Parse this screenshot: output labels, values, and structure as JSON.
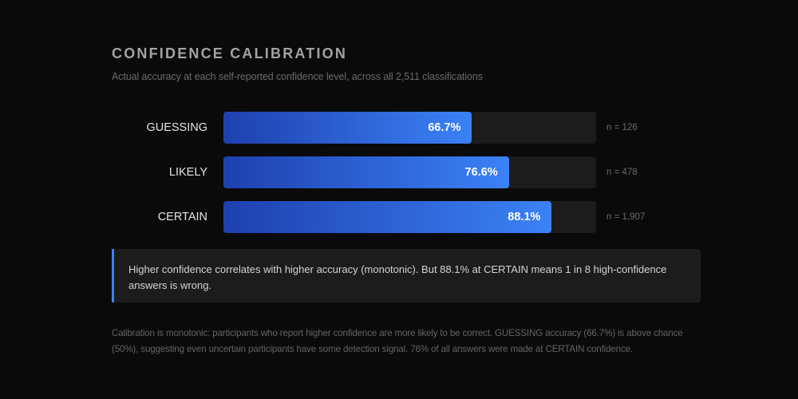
{
  "header": {
    "title": "CONFIDENCE CALIBRATION",
    "subtitle": "Actual accuracy at each self-reported confidence level, across all 2,511 classifications"
  },
  "chart_data": {
    "type": "bar",
    "orientation": "horizontal",
    "categories": [
      "GUESSING",
      "LIKELY",
      "CERTAIN"
    ],
    "values": [
      66.7,
      76.6,
      88.1
    ],
    "value_labels": [
      "66.7%",
      "76.6%",
      "88.1%"
    ],
    "counts": [
      "n = 126",
      "n = 478",
      "n = 1,907"
    ],
    "xlim": [
      0,
      100
    ],
    "grid": false,
    "colors": {
      "fill_start": "#1e40af",
      "fill_end": "#3b82f6",
      "track": "#1c1c1c"
    }
  },
  "callout": {
    "text": "Higher confidence correlates with higher accuracy (monotonic). But 88.1% at CERTAIN means 1 in 8 high-confidence answers is wrong.",
    "accent": "#3b82f6"
  },
  "note": "Calibration is monotonic: participants who report higher confidence are more likely to be correct. GUESSING accuracy (66.7%) is above chance (50%), suggesting even uncertain participants have some detection signal. 76% of all answers were made at CERTAIN confidence."
}
